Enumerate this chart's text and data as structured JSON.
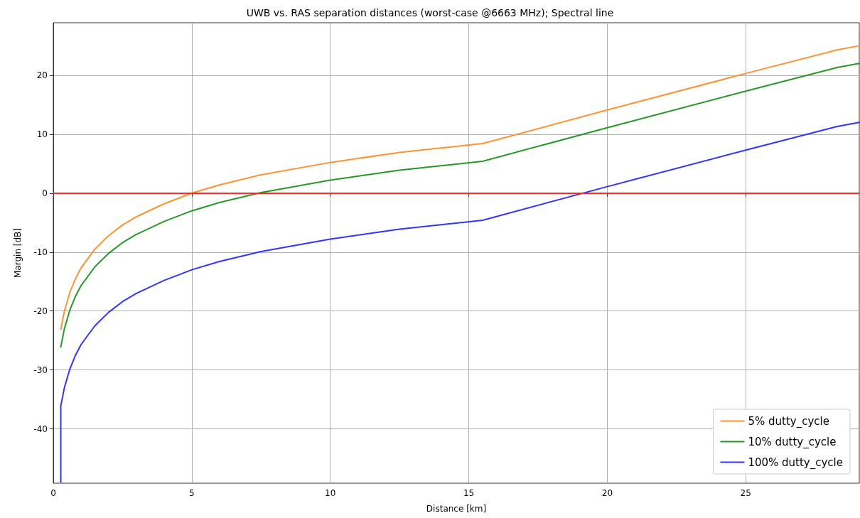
{
  "chart_data": {
    "type": "line",
    "title": "UWB vs. RAS separation distances (worst-case @6663 MHz); Spectral line",
    "xlabel": "Distance [km]",
    "ylabel": "Margin [dB]",
    "x": [
      0.27,
      0.27,
      0.4,
      0.6,
      0.8,
      1,
      1.5,
      2,
      2.5,
      3,
      4,
      5,
      6,
      7.5,
      10,
      12.5,
      15.5,
      20,
      25,
      28.3,
      29.1
    ],
    "series": [
      {
        "name": "5% dutty_cycle",
        "color": "#ff9232",
        "values": [
          null,
          -23.1,
          -20,
          -16.8,
          -14.5,
          -12.7,
          -9.5,
          -7.2,
          -5.4,
          -4,
          -1.8,
          0,
          1.4,
          3.1,
          5.2,
          6.9,
          8.4,
          14.1,
          20.3,
          24.3,
          25
        ]
      },
      {
        "name": "10% dutty_cycle",
        "color": "#2a962a",
        "values": [
          null,
          -26.1,
          -23,
          -19.8,
          -17.5,
          -15.7,
          -12.5,
          -10.2,
          -8.4,
          -7,
          -4.8,
          -3,
          -1.6,
          0.1,
          2.2,
          3.9,
          5.4,
          11.1,
          17.3,
          21.3,
          22
        ]
      },
      {
        "name": "100% dutty_cycle",
        "color": "#3333ff",
        "values": [
          -49,
          -36.1,
          -33,
          -29.8,
          -27.5,
          -25.7,
          -22.5,
          -20.2,
          -18.4,
          -17,
          -14.8,
          -13,
          -11.6,
          -9.9,
          -7.8,
          -6.1,
          -4.6,
          1.1,
          7.3,
          11.3,
          12
        ]
      }
    ],
    "xlim": [
      0,
      29.1
    ],
    "ylim": [
      -49.2,
      28.9
    ],
    "xticks": [
      0,
      5,
      10,
      15,
      20,
      25
    ],
    "yticks": [
      -40,
      -30,
      -20,
      -10,
      0,
      10,
      20
    ],
    "ref_lines": [
      {
        "axis": "y",
        "value": 0,
        "color": "#ff2a2a"
      }
    ],
    "grid": true,
    "legend": "bottom right",
    "marker": "none",
    "line_style": "solid"
  }
}
